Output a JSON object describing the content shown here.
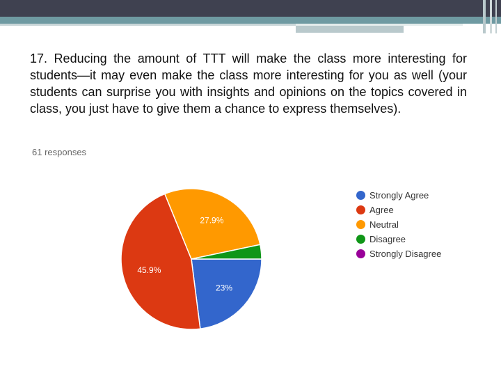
{
  "question": "17. Reducing the amount of TTT will make the class more interesting for students—it may even make the class more interesting for you as well (your students can surprise you with insights and opinions on the topics covered in class, you just have to give them a chance to express themselves).",
  "responses_label": "61 responses",
  "chart_data": {
    "type": "pie",
    "title": "",
    "categories": [
      "Strongly Agree",
      "Agree",
      "Neutral",
      "Disagree",
      "Strongly Disagree"
    ],
    "values": [
      23,
      45.9,
      27.9,
      3.3,
      0
    ],
    "labels": [
      "23%",
      "45.9%",
      "27.9%",
      "",
      ""
    ],
    "colors": [
      "#3366cc",
      "#dc3912",
      "#ff9900",
      "#109618",
      "#990099"
    ],
    "legend_position": "right"
  }
}
